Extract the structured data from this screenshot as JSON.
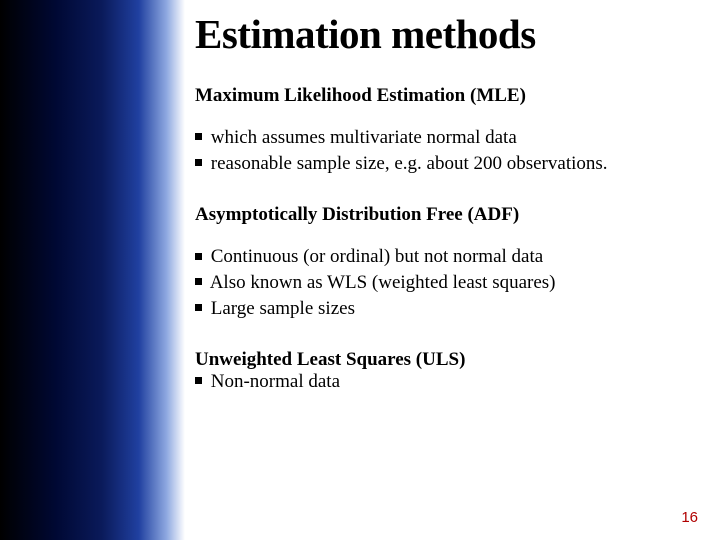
{
  "slide": {
    "title": "Estimation methods",
    "title_fontsize": 41,
    "title_color": "#000000",
    "heading_fontsize": 19,
    "body_fontsize": 19,
    "sections": [
      {
        "heading": "Maximum Likelihood Estimation (MLE)",
        "items": [
          "which assumes multivariate normal data",
          "reasonable sample size, e.g. about 200 observations."
        ],
        "item_wrap": "inline"
      },
      {
        "heading": "Asymptotically Distribution Free (ADF)",
        "items": [
          "Continuous (or ordinal) but not normal data",
          "Also known as WLS (weighted least squares)",
          "Large sample sizes"
        ],
        "item_wrap": "lines"
      },
      {
        "heading": "Unweighted Least Squares (ULS)",
        "items": [
          "Non-normal data"
        ],
        "item_wrap": "inline-tight"
      }
    ],
    "page_number": "16",
    "page_number_color": "#b00000",
    "page_number_fontsize": 15,
    "sidebar_gradient": [
      "#000000",
      "#0a1a5a",
      "#2040a0",
      "#ffffff"
    ],
    "background_color": "#ffffff"
  }
}
